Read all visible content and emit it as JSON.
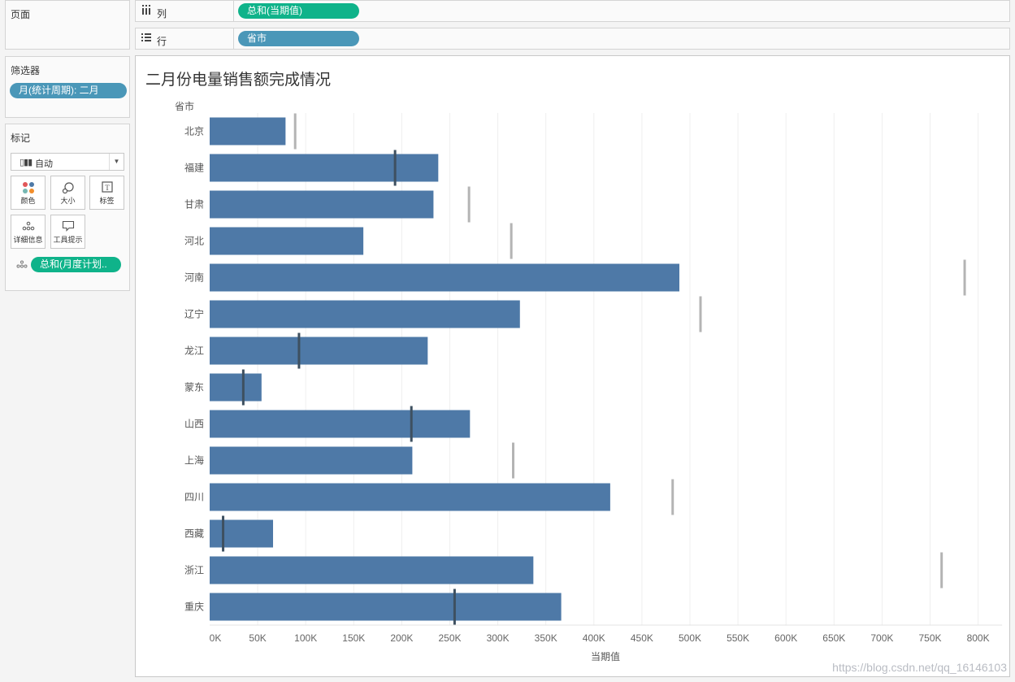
{
  "sidebar": {
    "pages_title": "页面",
    "filters_title": "筛选器",
    "filter_pill": "月(统计周期): 二月",
    "marks_title": "标记",
    "mark_type": "自动",
    "buttons": {
      "color": "颜色",
      "size": "大小",
      "label": "标签",
      "detail": "详细信息",
      "tooltip": "工具提示"
    },
    "detail_pill": "总和(月度计划.."
  },
  "shelves": {
    "columns_label": "列",
    "columns_pill": "总和(当期值)",
    "rows_label": "行",
    "rows_pill": "省市"
  },
  "chart_data": {
    "type": "bar",
    "orientation": "horizontal",
    "title": "二月份电量销售额完成情况",
    "row_header": "省市",
    "xlabel": "当期值",
    "xlim": [
      0,
      825000
    ],
    "xticks": [
      0,
      50000,
      100000,
      150000,
      200000,
      250000,
      300000,
      350000,
      400000,
      450000,
      500000,
      550000,
      600000,
      650000,
      700000,
      750000,
      800000
    ],
    "xtick_labels": [
      "0K",
      "50K",
      "100K",
      "150K",
      "200K",
      "250K",
      "300K",
      "350K",
      "400K",
      "450K",
      "500K",
      "550K",
      "600K",
      "650K",
      "700K",
      "750K",
      "800K"
    ],
    "categories": [
      "北京",
      "福建",
      "甘肃",
      "河北",
      "河南",
      "辽宁",
      "龙江",
      "蒙东",
      "山西",
      "上海",
      "四川",
      "西藏",
      "浙江",
      "重庆"
    ],
    "series": [
      {
        "name": "总和(当期值)",
        "values": [
          79000,
          238000,
          233000,
          160000,
          489000,
          323000,
          227000,
          54000,
          271000,
          211000,
          417000,
          66000,
          337000,
          366000
        ]
      },
      {
        "name": "总和(月度计划值)",
        "mark": "reference-line",
        "values": [
          89000,
          193000,
          270000,
          314000,
          786000,
          511000,
          93000,
          35000,
          210000,
          316000,
          482000,
          14000,
          762000,
          255000
        ]
      }
    ],
    "colors": {
      "bar": "#4e79a7",
      "target_outside": "#b4b4b4",
      "target_inside": "#3e5060",
      "grid": "#efefef"
    }
  },
  "watermark": "https://blog.csdn.net/qq_16146103"
}
